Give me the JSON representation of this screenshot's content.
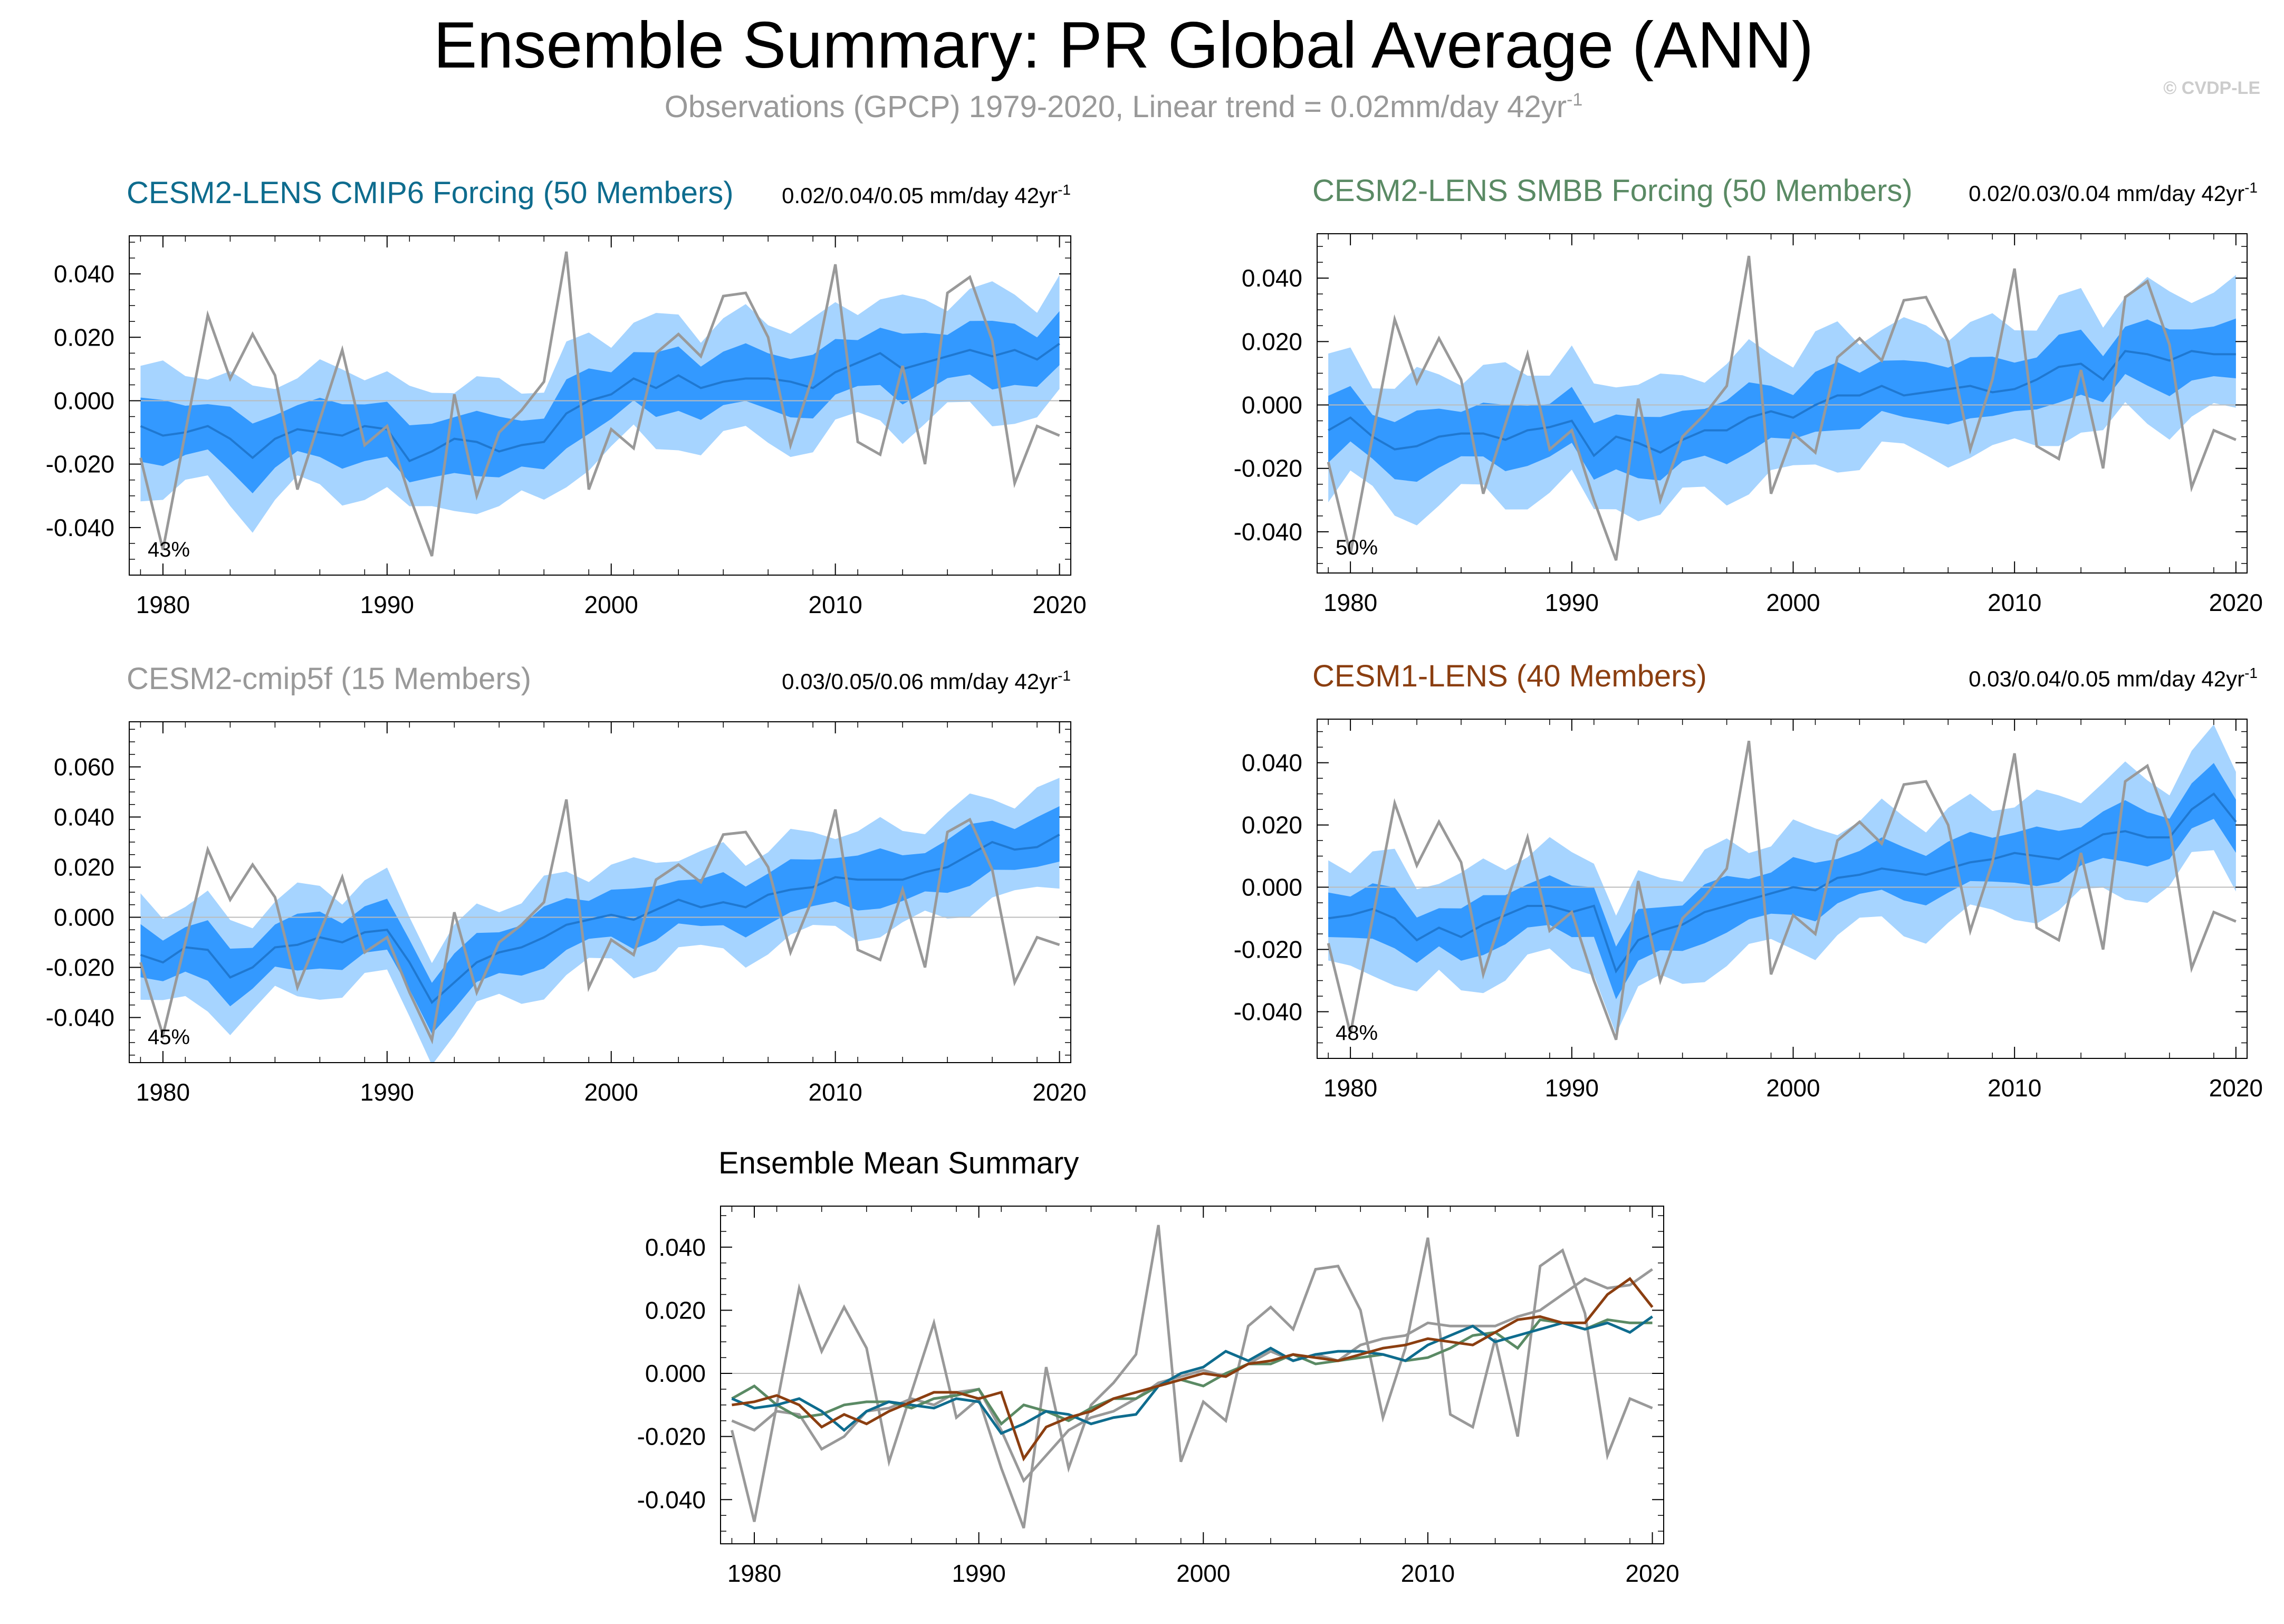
{
  "figure": {
    "title": "Ensemble Summary: PR Global Average (ANN)",
    "subtitle": "Observations (GPCP) 1979-2020, Linear trend = 0.02mm/day 42yr",
    "subtitle_sup": "-1",
    "credit": "© CVDP-LE"
  },
  "colors": {
    "band_outer": "#a6d4ff",
    "band_inner": "#3399ff",
    "mean_line": "#1f78d1",
    "obs": "#999999",
    "zero": "#bbbbbb",
    "cmip6": "#0e6c8e",
    "smbb": "#5a8a64",
    "cmip5f": "#999999",
    "cesm1": "#8b3e10"
  },
  "chart_data": [
    {
      "id": "cmip6",
      "type": "area",
      "title": "CESM2-LENS CMIP6 Forcing (50 Members)",
      "title_color": "#0e6c8e",
      "trend_label": "0.02/0.04/0.05 mm/day 42yr",
      "trend_sup": "-1",
      "percent": "43%",
      "x_start": 1979,
      "xticks": [
        "1980",
        "1990",
        "2000",
        "2010",
        "2020"
      ],
      "xlim": [
        1979,
        2020
      ],
      "ylim": [
        -0.055,
        0.052
      ],
      "yticks": [
        "0.040",
        "0.020",
        "0.000",
        "-0.020",
        "-0.040"
      ],
      "mean": [
        -0.008,
        -0.011,
        -0.01,
        -0.008,
        -0.012,
        -0.018,
        -0.012,
        -0.009,
        -0.01,
        -0.011,
        -0.008,
        -0.009,
        -0.019,
        -0.016,
        -0.012,
        -0.013,
        -0.016,
        -0.014,
        -0.013,
        -0.004,
        0.0,
        0.002,
        0.007,
        0.004,
        0.008,
        0.004,
        0.006,
        0.007,
        0.007,
        0.006,
        0.004,
        0.009,
        0.012,
        0.015,
        0.01,
        0.012,
        0.014,
        0.016,
        0.014,
        0.016,
        0.013,
        0.018
      ],
      "inner_spread": 0.009,
      "outer_spread": 0.019
    },
    {
      "id": "smbb",
      "type": "area",
      "title": "CESM2-LENS SMBB Forcing (50 Members)",
      "title_color": "#5a8a64",
      "trend_label": "0.02/0.03/0.04 mm/day 42yr",
      "trend_sup": "-1",
      "percent": "50%",
      "x_start": 1979,
      "xticks": [
        "1980",
        "1990",
        "2000",
        "2010",
        "2020"
      ],
      "xlim": [
        1979,
        2020
      ],
      "ylim": [
        -0.053,
        0.054
      ],
      "yticks": [
        "0.040",
        "0.020",
        "0.000",
        "-0.020",
        "-0.040"
      ],
      "mean": [
        -0.008,
        -0.004,
        -0.01,
        -0.014,
        -0.013,
        -0.01,
        -0.009,
        -0.009,
        -0.011,
        -0.008,
        -0.007,
        -0.005,
        -0.016,
        -0.01,
        -0.012,
        -0.015,
        -0.011,
        -0.008,
        -0.008,
        -0.004,
        -0.002,
        -0.004,
        0.0,
        0.003,
        0.003,
        0.006,
        0.003,
        0.004,
        0.005,
        0.006,
        0.004,
        0.005,
        0.008,
        0.012,
        0.013,
        0.008,
        0.017,
        0.016,
        0.014,
        0.017,
        0.016,
        0.016
      ],
      "inner_spread": 0.009,
      "outer_spread": 0.02
    },
    {
      "id": "cmip5f",
      "type": "area",
      "title": "CESM2-cmip5f (15 Members)",
      "title_color": "#999999",
      "trend_label": "0.03/0.05/0.06 mm/day 42yr",
      "trend_sup": "-1",
      "percent": "45%",
      "x_start": 1979,
      "xticks": [
        "1980",
        "1990",
        "2000",
        "2010",
        "2020"
      ],
      "xlim": [
        1979,
        2020
      ],
      "ylim": [
        -0.058,
        0.078
      ],
      "yticks": [
        "0.060",
        "0.040",
        "0.020",
        "0.000",
        "-0.020",
        "-0.040"
      ],
      "mean": [
        -0.015,
        -0.018,
        -0.012,
        -0.013,
        -0.024,
        -0.02,
        -0.012,
        -0.011,
        -0.008,
        -0.01,
        -0.006,
        -0.005,
        -0.018,
        -0.034,
        -0.026,
        -0.018,
        -0.014,
        -0.012,
        -0.008,
        -0.003,
        -0.001,
        0.001,
        -0.001,
        0.003,
        0.007,
        0.004,
        0.006,
        0.004,
        0.009,
        0.011,
        0.012,
        0.016,
        0.015,
        0.015,
        0.015,
        0.018,
        0.02,
        0.025,
        0.03,
        0.027,
        0.028,
        0.033
      ],
      "inner_spread": 0.01,
      "outer_spread": 0.02
    },
    {
      "id": "cesm1",
      "type": "area",
      "title": "CESM1-LENS (40 Members)",
      "title_color": "#8b3e10",
      "trend_label": "0.03/0.04/0.05 mm/day 42yr",
      "trend_sup": "-1",
      "percent": "48%",
      "x_start": 1979,
      "xticks": [
        "1980",
        "1990",
        "2000",
        "2010",
        "2020"
      ],
      "xlim": [
        1979,
        2020
      ],
      "ylim": [
        -0.055,
        0.054
      ],
      "yticks": [
        "0.040",
        "0.020",
        "0.000",
        "-0.020",
        "-0.040"
      ],
      "mean": [
        -0.01,
        -0.009,
        -0.007,
        -0.01,
        -0.017,
        -0.013,
        -0.016,
        -0.012,
        -0.009,
        -0.006,
        -0.006,
        -0.008,
        -0.006,
        -0.027,
        -0.017,
        -0.014,
        -0.012,
        -0.008,
        -0.006,
        -0.004,
        -0.002,
        0.0,
        -0.001,
        0.003,
        0.004,
        0.006,
        0.005,
        0.004,
        0.006,
        0.008,
        0.009,
        0.011,
        0.01,
        0.009,
        0.013,
        0.017,
        0.018,
        0.016,
        0.016,
        0.025,
        0.03,
        0.021
      ],
      "inner_spread": 0.008,
      "outer_spread": 0.018
    },
    {
      "id": "mean",
      "type": "line",
      "title": "Ensemble Mean Summary",
      "title_color": "#000000",
      "x_start": 1979,
      "xticks": [
        "1980",
        "1990",
        "2000",
        "2010",
        "2020"
      ],
      "xlim": [
        1979,
        2020
      ],
      "ylim": [
        -0.054,
        0.053
      ],
      "yticks": [
        "0.040",
        "0.020",
        "0.000",
        "-0.020",
        "-0.040"
      ],
      "series": [
        {
          "name": "CESM2-cmip5f",
          "color": "#999999",
          "ref": "cmip5f"
        },
        {
          "name": "CESM2-LENS SMBB Forcing",
          "color": "#5a8a64",
          "ref": "smbb"
        },
        {
          "name": "CESM2-LENS CMIP6 Forcing",
          "color": "#0e6c8e",
          "ref": "cmip6"
        },
        {
          "name": "CESM1-LENS",
          "color": "#8b3e10",
          "ref": "cesm1"
        }
      ]
    }
  ],
  "observations": {
    "name": "GPCP",
    "years": [
      1979,
      2020
    ],
    "values": [
      -0.018,
      -0.047,
      -0.01,
      0.027,
      0.007,
      0.021,
      0.008,
      -0.028,
      -0.006,
      0.016,
      -0.014,
      -0.008,
      -0.03,
      -0.049,
      0.002,
      -0.03,
      -0.01,
      -0.003,
      0.006,
      0.047,
      -0.028,
      -0.009,
      -0.015,
      0.015,
      0.021,
      0.014,
      0.033,
      0.034,
      0.02,
      -0.014,
      0.008,
      0.043,
      -0.013,
      -0.017,
      0.011,
      -0.02,
      0.034,
      0.039,
      0.019,
      -0.026,
      -0.008,
      -0.011
    ]
  }
}
